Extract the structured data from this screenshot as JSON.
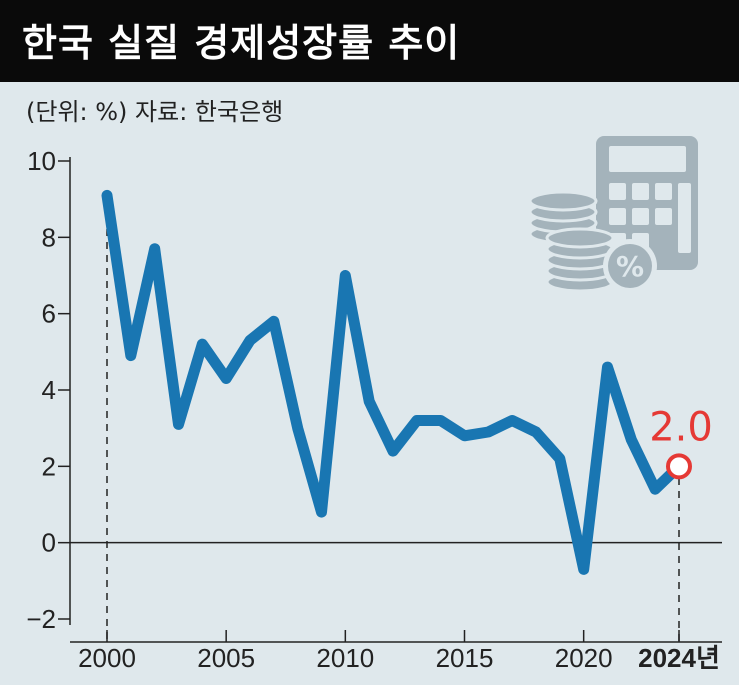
{
  "title": "한국 실질 경제성장률 추이",
  "subtitle": "(단위: %) 자료: 한국은행",
  "colors": {
    "line": "#1976b2",
    "highlight": "#e53935",
    "background": "#dfe8ec",
    "title_bar": "#0a0a0a",
    "icon": "#a4b3bb"
  },
  "icon": "calculator-coins-percent-icon",
  "chart_data": {
    "type": "line",
    "title": "한국 실질 경제성장률 추이",
    "subtitle": "(단위: %) 자료: 한국은행",
    "xlabel": "",
    "ylabel": "",
    "x": [
      2000,
      2001,
      2002,
      2003,
      2004,
      2005,
      2006,
      2007,
      2008,
      2009,
      2010,
      2011,
      2012,
      2013,
      2014,
      2015,
      2016,
      2017,
      2018,
      2019,
      2020,
      2021,
      2022,
      2023,
      2024
    ],
    "series": [
      {
        "name": "",
        "values": [
          9.1,
          4.9,
          7.7,
          3.1,
          5.2,
          4.3,
          5.3,
          5.8,
          3.0,
          0.8,
          7.0,
          3.7,
          2.4,
          3.2,
          3.2,
          2.8,
          2.9,
          3.2,
          2.9,
          2.2,
          -0.7,
          4.6,
          2.7,
          1.4,
          2.0
        ]
      }
    ],
    "xticks": [
      "2000",
      "2005",
      "2010",
      "2015",
      "2020",
      "2024년"
    ],
    "ytick_labels": [
      "10",
      "8",
      "6",
      "4",
      "2",
      "0",
      "−2"
    ],
    "yticks": [
      10,
      8,
      6,
      4,
      2,
      0,
      -2
    ],
    "ylim": [
      -2,
      10
    ],
    "xlim": [
      2000,
      2024
    ],
    "grid": false,
    "legend": "none",
    "highlight": {
      "x": 2024,
      "value": 2.0,
      "label": "2.0"
    }
  }
}
